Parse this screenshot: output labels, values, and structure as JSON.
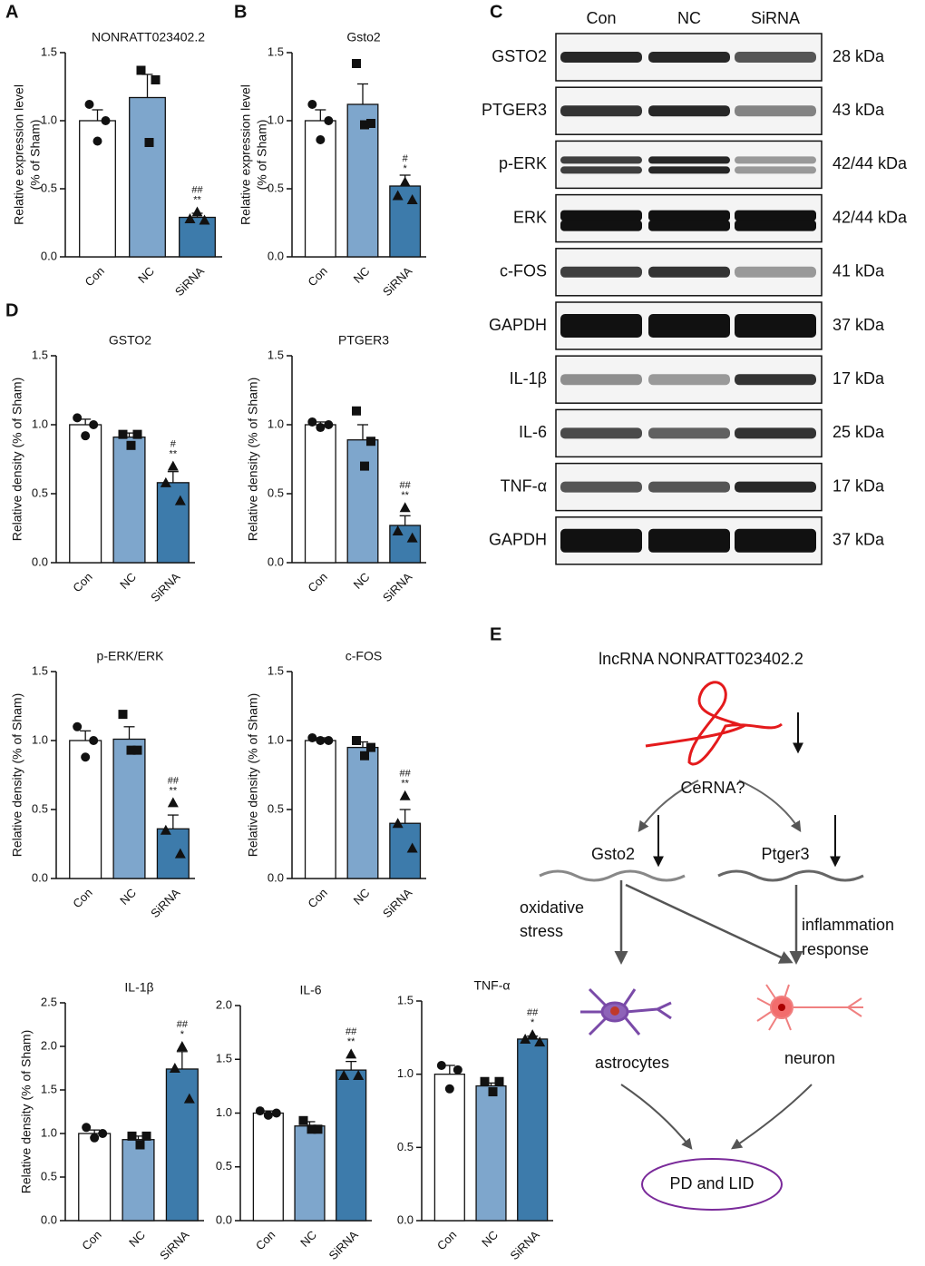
{
  "panel_labels": [
    "A",
    "B",
    "C",
    "D",
    "E"
  ],
  "chart_data": [
    {
      "type": "bar",
      "title": "NONRATT023402.2",
      "ylabel": [
        "Relative expression level",
        "(% of Sham)"
      ],
      "categories": [
        "Con",
        "NC",
        "SiRNA"
      ],
      "values": [
        1.0,
        1.17,
        0.29
      ],
      "errors": [
        0.08,
        0.17,
        0.03
      ],
      "points": [
        [
          1.12,
          1.0,
          0.85
        ],
        [
          1.37,
          1.3,
          0.84
        ],
        [
          0.33,
          0.28,
          0.27
        ]
      ],
      "annotations": [
        "##",
        "**"
      ],
      "colors": [
        "#ffffff",
        "#7ea6cc",
        "#3d7bab"
      ],
      "ylim": [
        0,
        1.5
      ],
      "yticks": [
        {
          "value": 0,
          "label": "0.0"
        },
        {
          "value": 0.5,
          "label": "0.5"
        },
        {
          "value": 1,
          "label": "1.0"
        },
        {
          "value": 1.5,
          "label": "1.5"
        }
      ]
    },
    {
      "type": "bar",
      "title": "Gsto2",
      "ylabel": [
        "Relative expression level",
        "(% of Sham)"
      ],
      "categories": [
        "Con",
        "NC",
        "SiRNA"
      ],
      "values": [
        1.0,
        1.12,
        0.52
      ],
      "errors": [
        0.08,
        0.15,
        0.08
      ],
      "points": [
        [
          1.12,
          1.0,
          0.86
        ],
        [
          1.42,
          0.98,
          0.97
        ],
        [
          0.55,
          0.45,
          0.42
        ]
      ],
      "annotations": [
        "#",
        "*"
      ],
      "colors": [
        "#ffffff",
        "#7ea6cc",
        "#3d7bab"
      ],
      "ylim": [
        0,
        1.5
      ],
      "yticks": [
        {
          "value": 0,
          "label": "0.0"
        },
        {
          "value": 0.5,
          "label": "0.5"
        },
        {
          "value": 1,
          "label": "1.0"
        },
        {
          "value": 1.5,
          "label": "1.5"
        }
      ]
    },
    {
      "type": "bar",
      "title": "GSTO2",
      "ylabel": [
        "Relative density (% of Sham)"
      ],
      "categories": [
        "Con",
        "NC",
        "SiRNA"
      ],
      "values": [
        1.0,
        0.91,
        0.58
      ],
      "errors": [
        0.04,
        0.03,
        0.08
      ],
      "points": [
        [
          1.05,
          1.0,
          0.92
        ],
        [
          0.93,
          0.93,
          0.85
        ],
        [
          0.7,
          0.58,
          0.45
        ]
      ],
      "annotations": [
        "#",
        "**"
      ],
      "colors": [
        "#ffffff",
        "#7ea6cc",
        "#3d7bab"
      ],
      "ylim": [
        0,
        1.5
      ],
      "yticks": [
        {
          "value": 0,
          "label": "0.0"
        },
        {
          "value": 0.5,
          "label": "0.5"
        },
        {
          "value": 1,
          "label": "1.0"
        },
        {
          "value": 1.5,
          "label": "1.5"
        }
      ]
    },
    {
      "type": "bar",
      "title": "PTGER3",
      "ylabel": [
        "Relative density (% of Sham)"
      ],
      "categories": [
        "Con",
        "NC",
        "SiRNA"
      ],
      "values": [
        1.0,
        0.89,
        0.27
      ],
      "errors": [
        0.02,
        0.11,
        0.07
      ],
      "points": [
        [
          1.02,
          1.0,
          0.98
        ],
        [
          1.1,
          0.88,
          0.7
        ],
        [
          0.4,
          0.23,
          0.18
        ]
      ],
      "annotations": [
        "##",
        "**"
      ],
      "colors": [
        "#ffffff",
        "#7ea6cc",
        "#3d7bab"
      ],
      "ylim": [
        0,
        1.5
      ],
      "yticks": [
        {
          "value": 0,
          "label": "0.0"
        },
        {
          "value": 0.5,
          "label": "0.5"
        },
        {
          "value": 1,
          "label": "1.0"
        },
        {
          "value": 1.5,
          "label": "1.5"
        }
      ]
    },
    {
      "type": "bar",
      "title": "p-ERK/ERK",
      "ylabel": [
        "Relative density (% of Sham)"
      ],
      "categories": [
        "Con",
        "NC",
        "SiRNA"
      ],
      "values": [
        1.0,
        1.01,
        0.36
      ],
      "errors": [
        0.07,
        0.09,
        0.1
      ],
      "points": [
        [
          1.1,
          1.0,
          0.88
        ],
        [
          1.19,
          0.93,
          0.93
        ],
        [
          0.55,
          0.35,
          0.18
        ]
      ],
      "annotations": [
        "##",
        "**"
      ],
      "colors": [
        "#ffffff",
        "#7ea6cc",
        "#3d7bab"
      ],
      "ylim": [
        0,
        1.5
      ],
      "yticks": [
        {
          "value": 0,
          "label": "0.0"
        },
        {
          "value": 0.5,
          "label": "0.5"
        },
        {
          "value": 1,
          "label": "1.0"
        },
        {
          "value": 1.5,
          "label": "1.5"
        }
      ]
    },
    {
      "type": "bar",
      "title": "c-FOS",
      "ylabel": [
        "Relative density (% of Sham)"
      ],
      "categories": [
        "Con",
        "NC",
        "SiRNA"
      ],
      "values": [
        1.0,
        0.95,
        0.4
      ],
      "errors": [
        0.02,
        0.04,
        0.1
      ],
      "points": [
        [
          1.02,
          1.0,
          1.0
        ],
        [
          1.0,
          0.95,
          0.89
        ],
        [
          0.6,
          0.4,
          0.22
        ]
      ],
      "annotations": [
        "##",
        "**"
      ],
      "colors": [
        "#ffffff",
        "#7ea6cc",
        "#3d7bab"
      ],
      "ylim": [
        0,
        1.5
      ],
      "yticks": [
        {
          "value": 0,
          "label": "0.0"
        },
        {
          "value": 0.5,
          "label": "0.5"
        },
        {
          "value": 1,
          "label": "1.0"
        },
        {
          "value": 1.5,
          "label": "1.5"
        }
      ]
    },
    {
      "type": "bar",
      "title": "IL-1β",
      "ylabel": [
        "Relative density (% of Sham)"
      ],
      "categories": [
        "Con",
        "NC",
        "SiRNA"
      ],
      "values": [
        1.0,
        0.93,
        1.74
      ],
      "errors": [
        0.04,
        0.04,
        0.2
      ],
      "points": [
        [
          1.07,
          1.0,
          0.95
        ],
        [
          0.97,
          0.97,
          0.87
        ],
        [
          2.0,
          1.75,
          1.4
        ]
      ],
      "annotations": [
        "##",
        "*"
      ],
      "colors": [
        "#ffffff",
        "#7ea6cc",
        "#3d7bab"
      ],
      "ylim": [
        0,
        2.5
      ],
      "yticks": [
        {
          "value": 0,
          "label": "0.0"
        },
        {
          "value": 0.5,
          "label": "0.5"
        },
        {
          "value": 1,
          "label": "1.0"
        },
        {
          "value": 1.5,
          "label": "1.5"
        },
        {
          "value": 2,
          "label": "2.0"
        },
        {
          "value": 2.5,
          "label": "2.5"
        }
      ]
    },
    {
      "type": "bar",
      "title": "IL-6",
      "categories": [
        "Con",
        "NC",
        "SiRNA"
      ],
      "values": [
        1.0,
        0.88,
        1.4
      ],
      "errors": [
        0.02,
        0.04,
        0.08
      ],
      "points": [
        [
          1.02,
          1.0,
          0.98
        ],
        [
          0.93,
          0.85,
          0.85
        ],
        [
          1.55,
          1.35,
          1.35
        ]
      ],
      "annotations": [
        "##",
        "**"
      ],
      "colors": [
        "#ffffff",
        "#7ea6cc",
        "#3d7bab"
      ],
      "ylim": [
        0,
        2.0
      ],
      "yticks": [
        {
          "value": 0,
          "label": "0.0"
        },
        {
          "value": 0.5,
          "label": "0.5"
        },
        {
          "value": 1,
          "label": "1.0"
        },
        {
          "value": 1.5,
          "label": "1.5"
        },
        {
          "value": 2,
          "label": "2.0"
        }
      ]
    },
    {
      "type": "bar",
      "title": "TNF-α",
      "categories": [
        "Con",
        "NC",
        "SiRNA"
      ],
      "values": [
        1.0,
        0.92,
        1.24
      ],
      "errors": [
        0.06,
        0.02,
        0.02
      ],
      "points": [
        [
          1.06,
          1.03,
          0.9
        ],
        [
          0.95,
          0.95,
          0.88
        ],
        [
          1.27,
          1.24,
          1.22
        ]
      ],
      "annotations": [
        "##",
        "*"
      ],
      "colors": [
        "#ffffff",
        "#7ea6cc",
        "#3d7bab"
      ],
      "ylim": [
        0,
        1.5
      ],
      "yticks": [
        {
          "value": 0,
          "label": "0.0"
        },
        {
          "value": 0.5,
          "label": "0.5"
        },
        {
          "value": 1,
          "label": "1.0"
        },
        {
          "value": 1.5,
          "label": "1.5"
        }
      ]
    }
  ],
  "blot": {
    "lanes": [
      "Con",
      "NC",
      "SiRNA"
    ],
    "rows": [
      {
        "label": "GSTO2",
        "size": "28 kDa"
      },
      {
        "label": "PTGER3",
        "size": "43 kDa"
      },
      {
        "label": "p-ERK",
        "size": "42/44 kDa"
      },
      {
        "label": "ERK",
        "size": "42/44 kDa"
      },
      {
        "label": "c-FOS",
        "size": "41 kDa"
      },
      {
        "label": "GAPDH",
        "size": "37 kDa"
      },
      {
        "label": "IL-1β",
        "size": "17 kDa"
      },
      {
        "label": "IL-6",
        "size": "25 kDa"
      },
      {
        "label": "TNF-α",
        "size": "17 kDa"
      },
      {
        "label": "GAPDH",
        "size": "37 kDa"
      }
    ]
  },
  "diagram": {
    "lncrna": "lncRNA NONRATT023402.2",
    "cerna": "CeRNA?",
    "gene1": "Gsto2",
    "gene2": "Ptger3",
    "effect1": [
      "oxidative",
      "stress"
    ],
    "effect2": [
      "inflammation",
      "response"
    ],
    "cell1": "astrocytes",
    "cell2": "neuron",
    "outcome": "PD and LID"
  }
}
